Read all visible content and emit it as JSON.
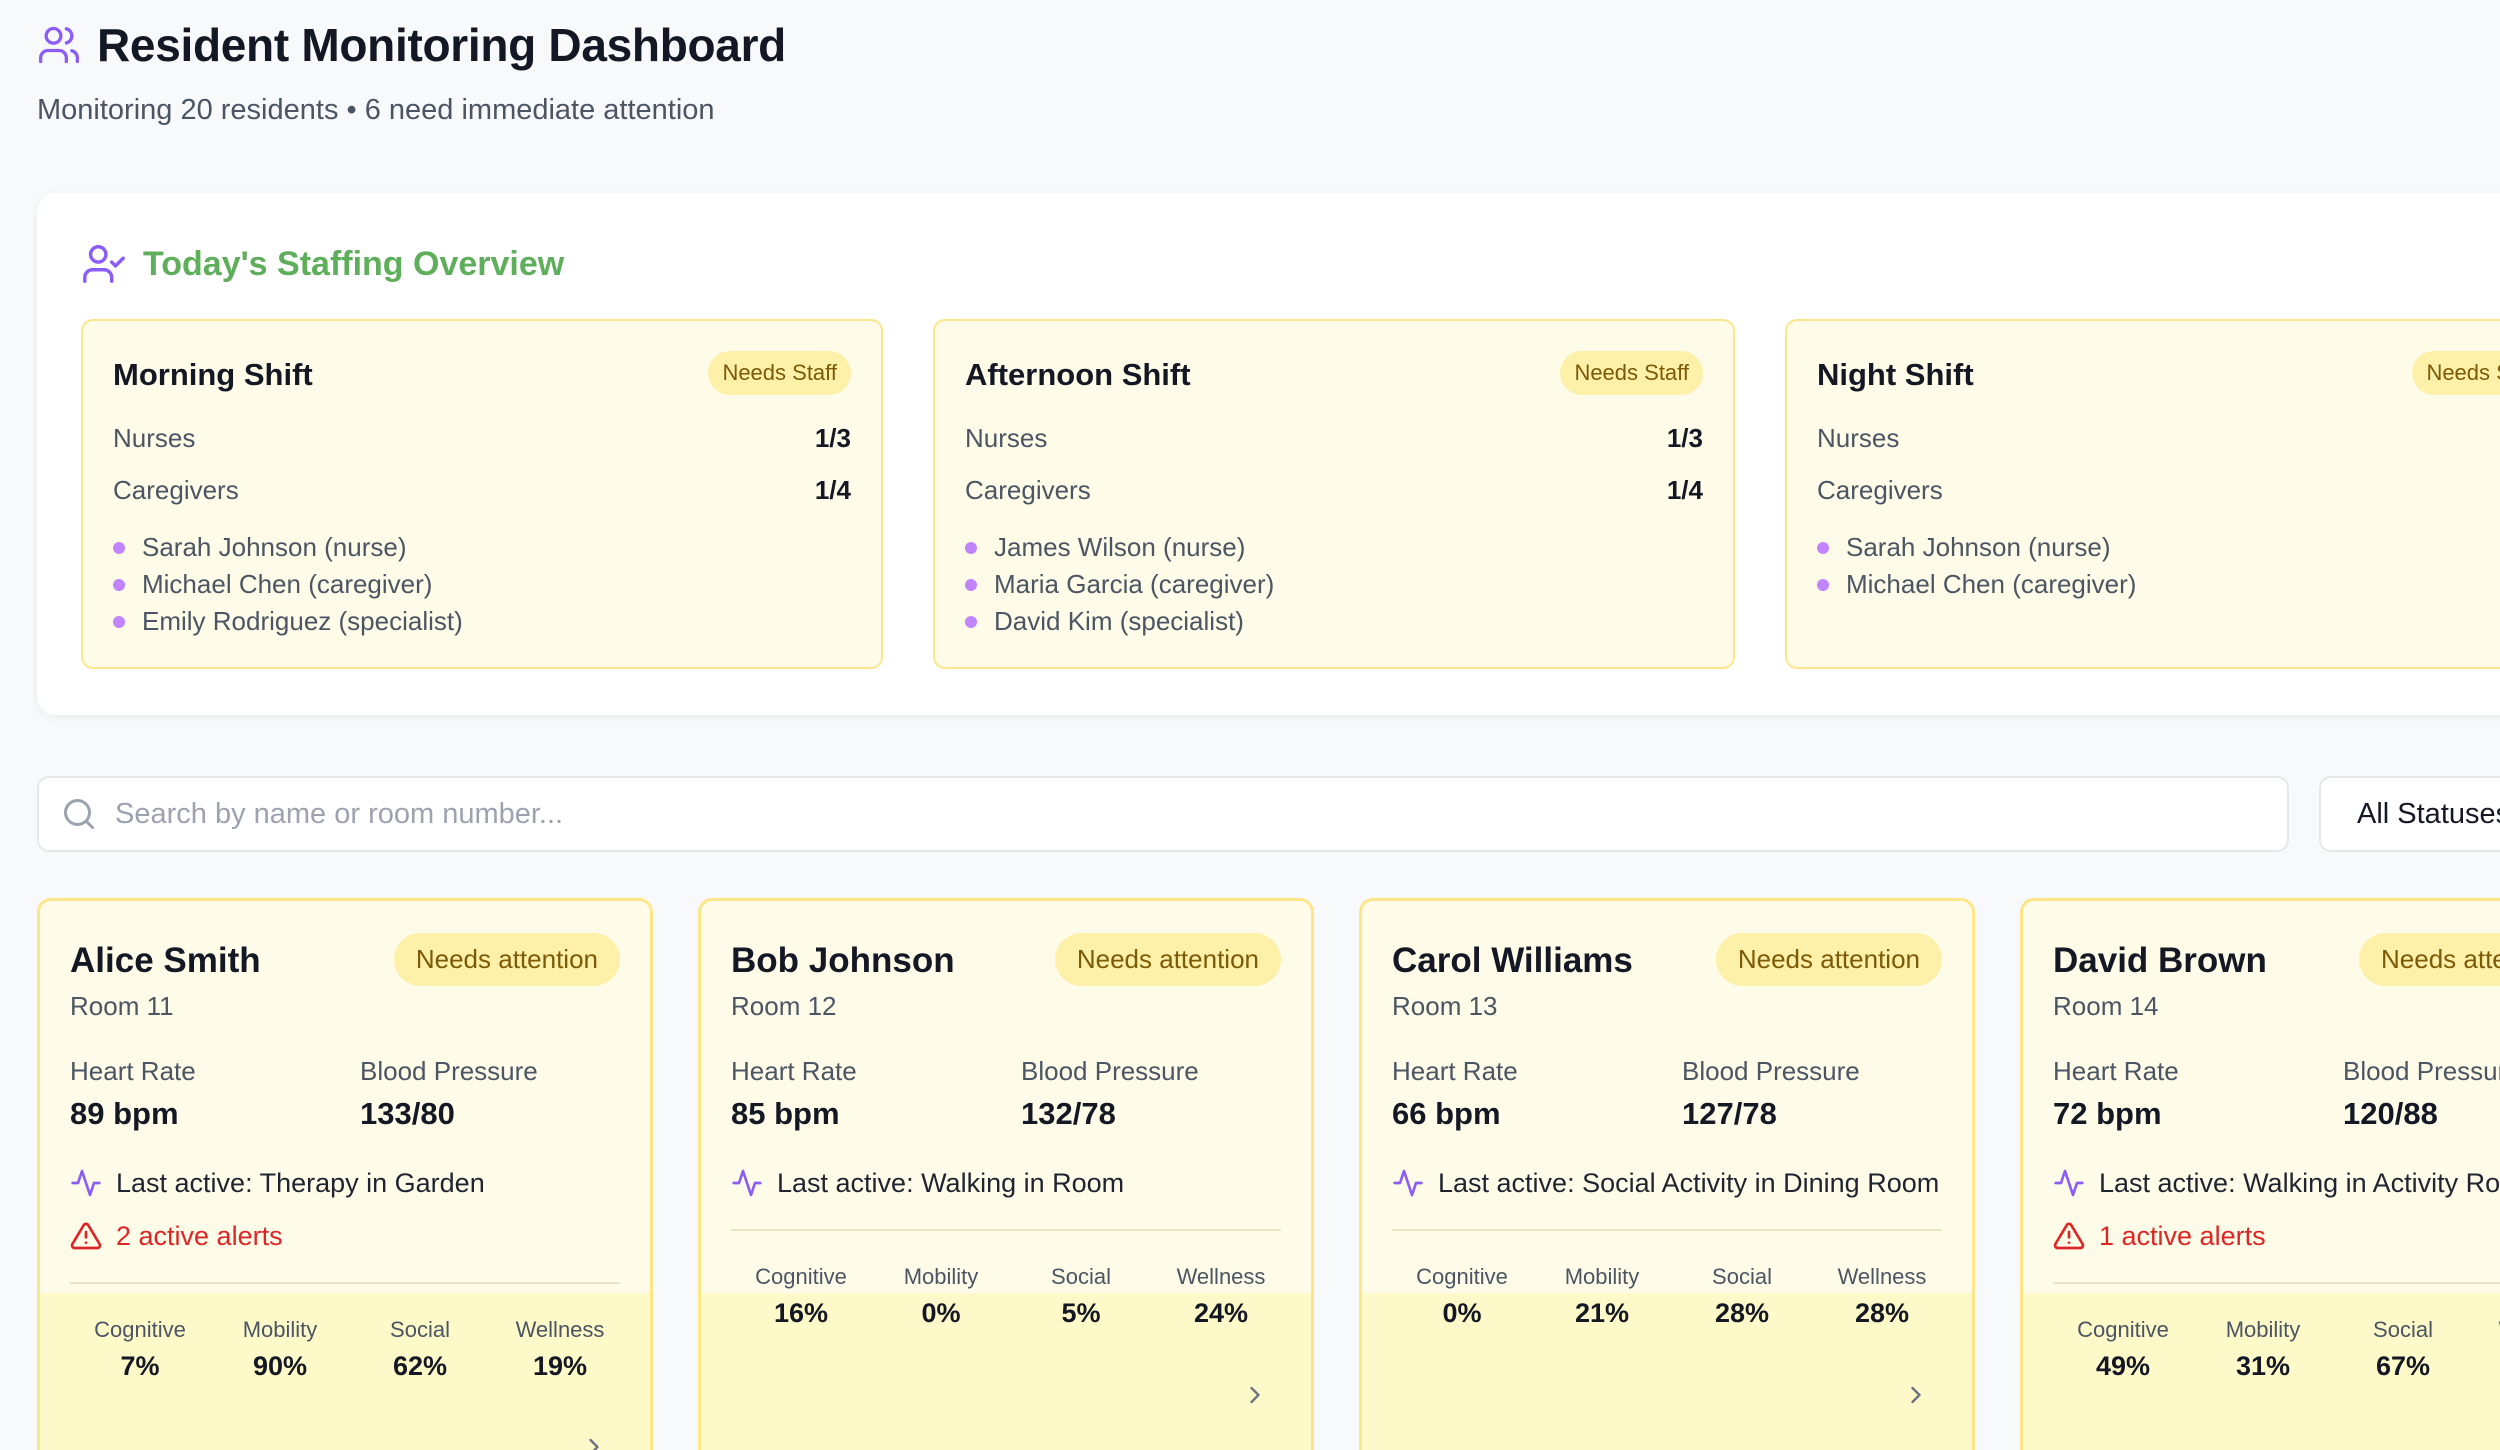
{
  "header": {
    "title": "Resident Monitoring Dashboard",
    "subtitle": "Monitoring 20 residents • 6 need immediate attention",
    "icon": "users-icon"
  },
  "staffing": {
    "title": "Today's Staffing Overview",
    "icon": "user-check-icon",
    "shifts": [
      {
        "name": "Morning Shift",
        "badge": "Needs Staff",
        "nurses_label": "Nurses",
        "nurses": "1/3",
        "caregivers_label": "Caregivers",
        "caregivers": "1/4",
        "staff": [
          "Sarah Johnson (nurse)",
          "Michael Chen (caregiver)",
          "Emily Rodriguez (specialist)"
        ]
      },
      {
        "name": "Afternoon Shift",
        "badge": "Needs Staff",
        "nurses_label": "Nurses",
        "nurses": "1/3",
        "caregivers_label": "Caregivers",
        "caregivers": "1/4",
        "staff": [
          "James Wilson (nurse)",
          "Maria Garcia (caregiver)",
          "David Kim (specialist)"
        ]
      },
      {
        "name": "Night Shift",
        "badge": "Needs Staff",
        "nurses_label": "Nurses",
        "caregivers_label": "Caregivers",
        "staff": [
          "Sarah Johnson (nurse)",
          "Michael Chen (caregiver)"
        ]
      }
    ]
  },
  "search": {
    "placeholder": "Search by name or room number...",
    "icon": "search-icon"
  },
  "filter": {
    "status_value": "All Statuses"
  },
  "labels": {
    "heart_rate": "Heart Rate",
    "blood_pressure": "Blood Pressure",
    "cognitive": "Cognitive",
    "mobility": "Mobility",
    "social": "Social",
    "wellness": "Wellness"
  },
  "residents": [
    {
      "name": "Alice Smith",
      "room": "Room 11",
      "status": "Needs attention",
      "heart_rate": "89 bpm",
      "blood_pressure": "133/80",
      "activity": "Last active: Therapy in Garden",
      "alerts": "2 active alerts",
      "cognitive": "7%",
      "mobility": "90%",
      "social": "62%",
      "wellness": "19%"
    },
    {
      "name": "Bob Johnson",
      "room": "Room 12",
      "status": "Needs attention",
      "heart_rate": "85 bpm",
      "blood_pressure": "132/78",
      "activity": "Last active: Walking in Room",
      "cognitive": "16%",
      "mobility": "0%",
      "social": "5%",
      "wellness": "24%"
    },
    {
      "name": "Carol Williams",
      "room": "Room 13",
      "status": "Needs attention",
      "heart_rate": "66 bpm",
      "blood_pressure": "127/78",
      "activity": "Last active: Social Activity in Dining Room",
      "cognitive": "0%",
      "mobility": "21%",
      "social": "28%",
      "wellness": "28%"
    },
    {
      "name": "David Brown",
      "room": "Room 14",
      "status": "Needs attention",
      "heart_rate": "72 bpm",
      "blood_pressure": "120/88",
      "activity": "Last active: Walking in Activity Room",
      "alerts": "1 active alerts",
      "cognitive": "49%",
      "mobility": "31%",
      "social": "67%",
      "wellness": ""
    }
  ],
  "colors": {
    "accent": "#8b5cf6",
    "staffing_title": "#5fae5b",
    "card_bg": "#fefce8",
    "card_border": "#fde68a",
    "alert": "#dc2626"
  }
}
